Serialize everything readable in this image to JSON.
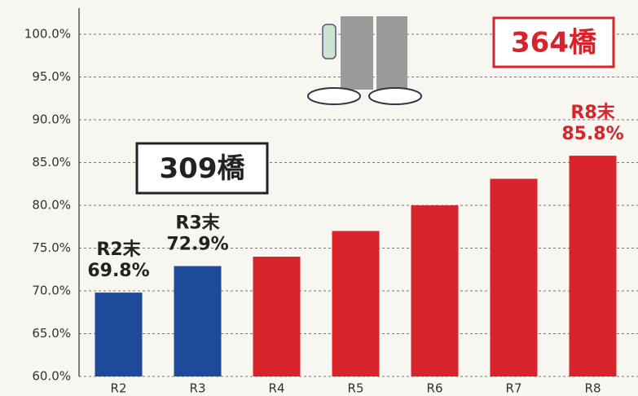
{
  "chart_data": {
    "type": "bar",
    "categories": [
      "R2",
      "R3",
      "R4",
      "R5",
      "R6",
      "R7",
      "R8"
    ],
    "values": [
      69.8,
      72.9,
      74,
      77,
      80,
      83.1,
      85.8
    ],
    "colors": [
      "#1d4a9b",
      "#1d4a9b",
      "#d9232b",
      "#d9232b",
      "#d9232b",
      "#d9232b",
      "#d9232b"
    ],
    "label_titles": [
      "R2末",
      "R3末",
      null,
      null,
      null,
      null,
      "R8末"
    ],
    "value_labels": [
      "69.8%",
      "72.9%",
      null,
      null,
      null,
      null,
      "85.8%"
    ],
    "label_colors": [
      "#222222",
      "#222222",
      null,
      null,
      null,
      null,
      "#d9232b"
    ],
    "ylim": [
      60,
      104
    ],
    "yticks": [
      {
        "value": 60,
        "label": "60.0%"
      },
      {
        "value": 65,
        "label": "65.0%"
      },
      {
        "value": 70,
        "label": "70.0%"
      },
      {
        "value": 75,
        "label": "75.0%"
      },
      {
        "value": 80,
        "label": "80.0%"
      },
      {
        "value": 85,
        "label": "85.0%"
      },
      {
        "value": 90,
        "label": "90.0%"
      },
      {
        "value": 95,
        "label": "95.0%"
      },
      {
        "value": 100,
        "label": "100.0%"
      }
    ],
    "grid": true,
    "annotations": [
      {
        "text": "309橋",
        "color": "#222222"
      },
      {
        "text": "364橋",
        "color": "#d9232b"
      }
    ]
  }
}
